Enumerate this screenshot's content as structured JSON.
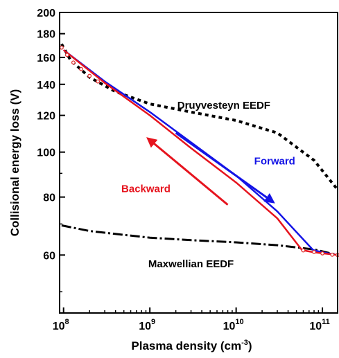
{
  "chart_data": {
    "type": "line",
    "title": "",
    "xlabel": "Plasma density (cm",
    "xlabel_sup": "-3",
    "xlabel_end": ")",
    "ylabel": "Collisional energy loss (V)",
    "x_scale": "log",
    "y_scale": "log",
    "xlim": [
      90000000,
      150000000000
    ],
    "ylim": [
      45,
      200
    ],
    "x_ticks": [
      {
        "value": 100000000,
        "base": "10",
        "exp": "8"
      },
      {
        "value": 1000000000,
        "base": "10",
        "exp": "9"
      },
      {
        "value": 10000000000,
        "base": "10",
        "exp": "10"
      },
      {
        "value": 100000000000,
        "base": "10",
        "exp": "11"
      }
    ],
    "y_ticks": [
      60,
      80,
      100,
      120,
      140,
      160,
      180,
      200
    ],
    "y_minor_ticks": [
      50,
      70,
      90
    ],
    "grid": false,
    "colors": {
      "forward": "#1414e6",
      "backward": "#e6141e",
      "reference": "#000000",
      "marker": "#e03030"
    },
    "series": [
      {
        "name": "Druyvesteyn EEDF",
        "style": "dotted",
        "x": [
          95000000,
          120000000,
          200000000,
          400000000,
          1000000000,
          3000000000,
          10000000000,
          30000000000,
          80000000000,
          150000000000
        ],
        "y": [
          171,
          158,
          145,
          135,
          127,
          122,
          117,
          110,
          96,
          83
        ]
      },
      {
        "name": "Maxwellian EEDF",
        "style": "dash-dot",
        "x": [
          95000000,
          200000000,
          500000000,
          1000000000,
          3000000000,
          10000000000,
          30000000000,
          80000000000,
          150000000000
        ],
        "y": [
          69.5,
          67.6,
          66.3,
          65.4,
          64.6,
          63.9,
          63.0,
          61.7,
          60.0
        ]
      },
      {
        "name": "Forward",
        "style": "solid",
        "x": [
          100000000,
          300000000,
          1000000000,
          3000000000,
          10000000000,
          30000000000,
          78000000000,
          100000000000,
          150000000000
        ],
        "y": [
          166,
          142,
          122,
          105,
          89,
          74.5,
          61.5,
          60.8,
          60.0
        ]
      },
      {
        "name": "Backward",
        "style": "solid",
        "x": [
          100000000,
          300000000,
          1000000000,
          3000000000,
          10000000000,
          30000000000,
          58000000000,
          80000000000,
          150000000000
        ],
        "y": [
          166,
          141,
          120,
          102,
          86,
          72,
          61.5,
          60.8,
          60.0
        ]
      },
      {
        "name": "markers",
        "style": "open-circles",
        "x": [
          95000000,
          110000000,
          130000000,
          160000000,
          200000000,
          250000000,
          60000000000,
          80000000000,
          100000000000,
          130000000000,
          150000000000
        ],
        "y": [
          168,
          162,
          156,
          151,
          146,
          142,
          61.4,
          60.9,
          60.5,
          60.1,
          60.0
        ]
      }
    ],
    "annotations": [
      {
        "text": "Druyvesteyn EEDF",
        "x": 7200000000,
        "y": 124,
        "color": "#000000"
      },
      {
        "text": "Maxwellian EEDF",
        "x": 3000000000,
        "y": 56.5,
        "color": "#000000"
      },
      {
        "text": "Forward",
        "x": 28000000000,
        "y": 94,
        "color": "#1414e6"
      },
      {
        "text": "Backward",
        "x": 900000000,
        "y": 82,
        "color": "#e6141e"
      }
    ],
    "arrows": [
      {
        "name": "forward-arrow",
        "color": "#1414e6",
        "from": {
          "x": 2000000000,
          "y": 110
        },
        "to": {
          "x": 27000000000,
          "y": 78
        }
      },
      {
        "name": "backward-arrow",
        "color": "#e6141e",
        "from": {
          "x": 8000000000,
          "y": 77
        },
        "to": {
          "x": 950000000,
          "y": 107
        }
      }
    ]
  }
}
